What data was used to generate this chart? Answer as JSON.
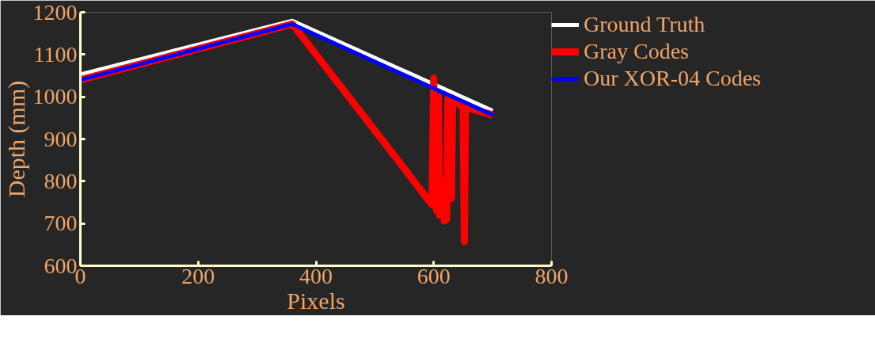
{
  "chart_data": {
    "type": "line",
    "xlabel": "Pixels",
    "ylabel": "Depth (mm)",
    "xlim": [
      0,
      800
    ],
    "xticks": [
      0,
      200,
      400,
      600,
      800
    ],
    "ylim": [
      600,
      1200
    ],
    "yticks": [
      600,
      700,
      800,
      900,
      1000,
      1100,
      1200
    ],
    "grid": false,
    "legend": "top right",
    "marker": "none",
    "line_style": "solid",
    "series": [
      {
        "name": "Ground Truth",
        "color": "#ffffff",
        "x": [
          0,
          360,
          700
        ],
        "values": [
          1053,
          1180,
          967
        ]
      },
      {
        "name": "Gray Codes",
        "color": "#ff0000",
        "x": [
          0,
          180,
          360,
          400,
          450,
          500,
          550,
          590,
          597,
          600,
          602,
          605,
          608,
          610,
          614,
          616,
          618,
          622,
          624,
          627,
          630,
          632,
          636,
          640,
          650,
          652,
          654,
          680,
          700
        ],
        "values": [
          1040,
          1106,
          1172,
          1100,
          1010,
          920,
          830,
          757,
          745,
          1044,
          750,
          730,
          1000,
          720,
          800,
          800,
          706,
          710,
          995,
          990,
          760,
          990,
          990,
          985,
          975,
          657,
          975,
          965,
          957
        ]
      },
      {
        "name": "Our XOR-04 Codes",
        "color": "#0000ff",
        "x": [
          0,
          180,
          360,
          530,
          700
        ],
        "values": [
          1040,
          1106,
          1172,
          1064,
          957
        ]
      }
    ]
  }
}
